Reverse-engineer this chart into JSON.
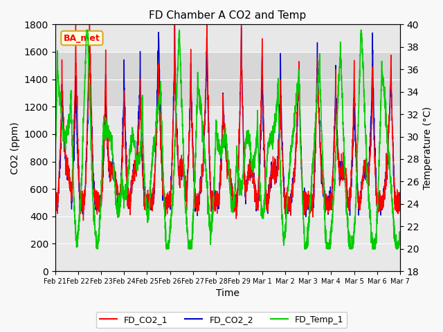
{
  "title": "FD Chamber A CO2 and Temp",
  "xlabel": "Time",
  "ylabel_left": "CO2 (ppm)",
  "ylabel_right": "Temperature (°C)",
  "ylim_left": [
    0,
    1800
  ],
  "ylim_right": [
    18,
    40
  ],
  "yticks_left": [
    0,
    200,
    400,
    600,
    800,
    1000,
    1200,
    1400,
    1600,
    1800
  ],
  "yticks_right": [
    18,
    20,
    22,
    24,
    26,
    28,
    30,
    32,
    34,
    36,
    38,
    40
  ],
  "xlim": [
    0,
    15
  ],
  "xtick_positions": [
    0,
    1,
    2,
    3,
    4,
    5,
    6,
    7,
    8,
    9,
    10,
    11,
    12,
    13,
    14,
    15
  ],
  "xtick_labels": [
    "Feb 21",
    "Feb 22",
    "Feb 23",
    "Feb 24",
    "Feb 25",
    "Feb 26",
    "Feb 27",
    "Feb 28",
    "Feb 29",
    "Mar 1",
    "Mar 2",
    "Mar 3",
    "Mar 4",
    "Mar 5",
    "Mar 6",
    "Mar 7"
  ],
  "annotation_text": "BA_met",
  "shaded_region": [
    1200,
    1600
  ],
  "line_colors": {
    "FD_CO2_1": "#ff0000",
    "FD_CO2_2": "#0000cc",
    "FD_Temp_1": "#00cc00"
  },
  "line_widths": {
    "FD_CO2_1": 1.0,
    "FD_CO2_2": 1.0,
    "FD_Temp_1": 1.2
  },
  "fig_facecolor": "#f8f8f8",
  "ax_facecolor": "#e8e8e8"
}
